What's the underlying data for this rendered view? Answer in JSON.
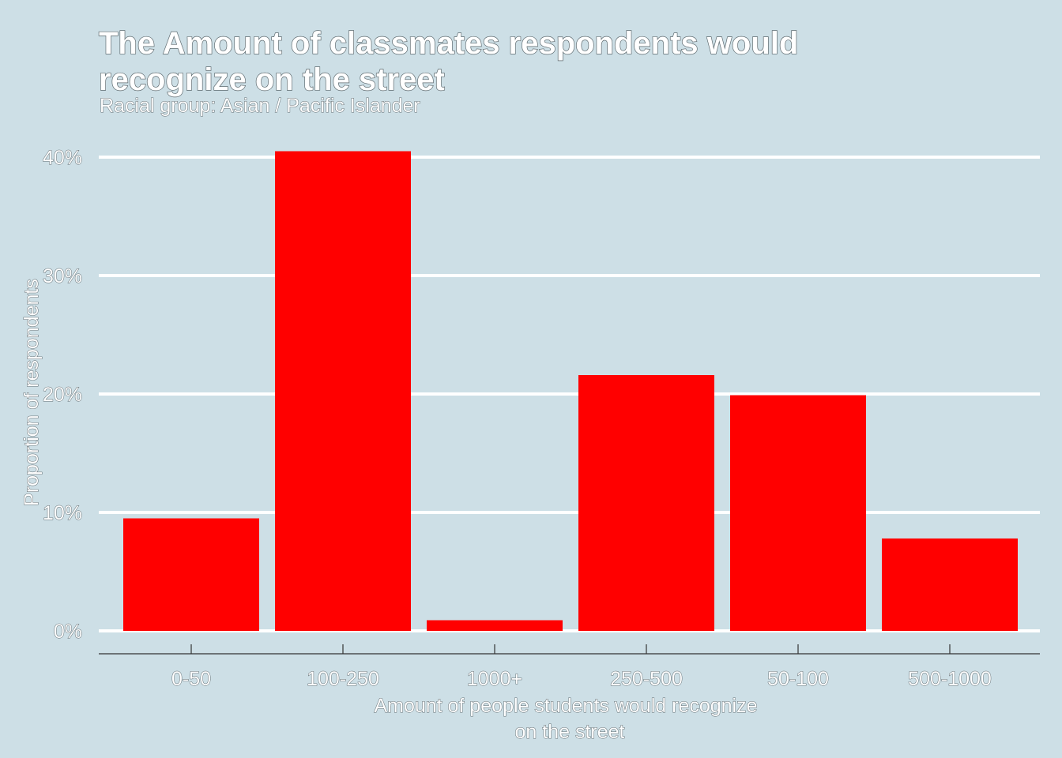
{
  "chart_data": {
    "type": "bar",
    "title_lines": [
      "The Amount of classmates respondents would",
      "recognize on the street"
    ],
    "subtitle": "Racial group: Asian / Pacific Islander",
    "xlabel_lines": [
      "Amount of people students would recognize",
      "on the street"
    ],
    "ylabel": "Proportion of respondents",
    "categories": [
      "0-50",
      "100-250",
      "1000+",
      "250-500",
      "50-100",
      "500-1000"
    ],
    "values": [
      9.5,
      40.5,
      0.9,
      21.6,
      19.9,
      7.8
    ],
    "ylim": [
      0,
      42
    ],
    "yticks": [
      0,
      10,
      20,
      30,
      40
    ],
    "ytick_labels": [
      "0%",
      "10%",
      "20%",
      "30%",
      "40%"
    ],
    "grid": true,
    "bar_color": "#ff0000",
    "background_color": "#cddfe6",
    "grid_color": "#ffffff"
  }
}
